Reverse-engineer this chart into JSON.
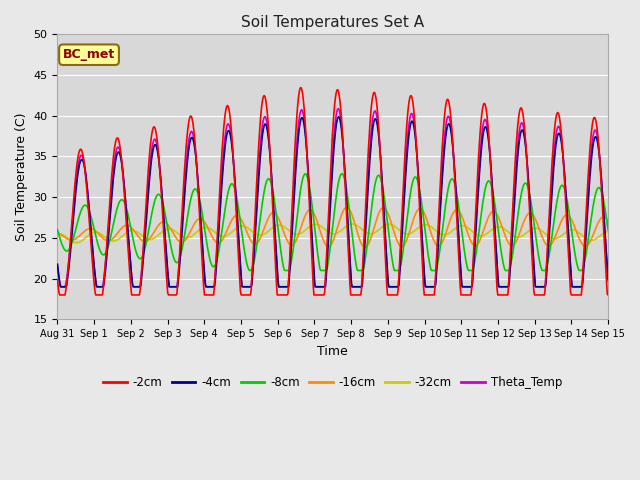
{
  "title": "Soil Temperatures Set A",
  "xlabel": "Time",
  "ylabel": "Soil Temperature (C)",
  "ylim": [
    15,
    50
  ],
  "fig_bg_color": "#e8e8e8",
  "plot_bg_color": "#d8d8d8",
  "annotation_text": "BC_met",
  "annotation_box_color": "#ffff99",
  "annotation_box_edge": "#8B6914",
  "series_colors": {
    "-2cm": "#ff0000",
    "-4cm": "#00008b",
    "-8cm": "#00cc00",
    "-16cm": "#ff8c00",
    "-32cm": "#cccc00",
    "Theta_Temp": "#cc00cc"
  },
  "x_tick_labels": [
    "Aug 31",
    "Sep 1",
    "Sep 2",
    "Sep 3",
    "Sep 4",
    "Sep 5",
    "Sep 6",
    "Sep 7",
    "Sep 8",
    "Sep 9",
    "Sep 10",
    "Sep 11",
    "Sep 12",
    "Sep 13",
    "Sep 14",
    "Sep 15"
  ],
  "n_days": 15,
  "gridcolor": "#ffffff",
  "linewidth": 1.2,
  "figsize": [
    6.4,
    4.8
  ],
  "dpi": 100
}
